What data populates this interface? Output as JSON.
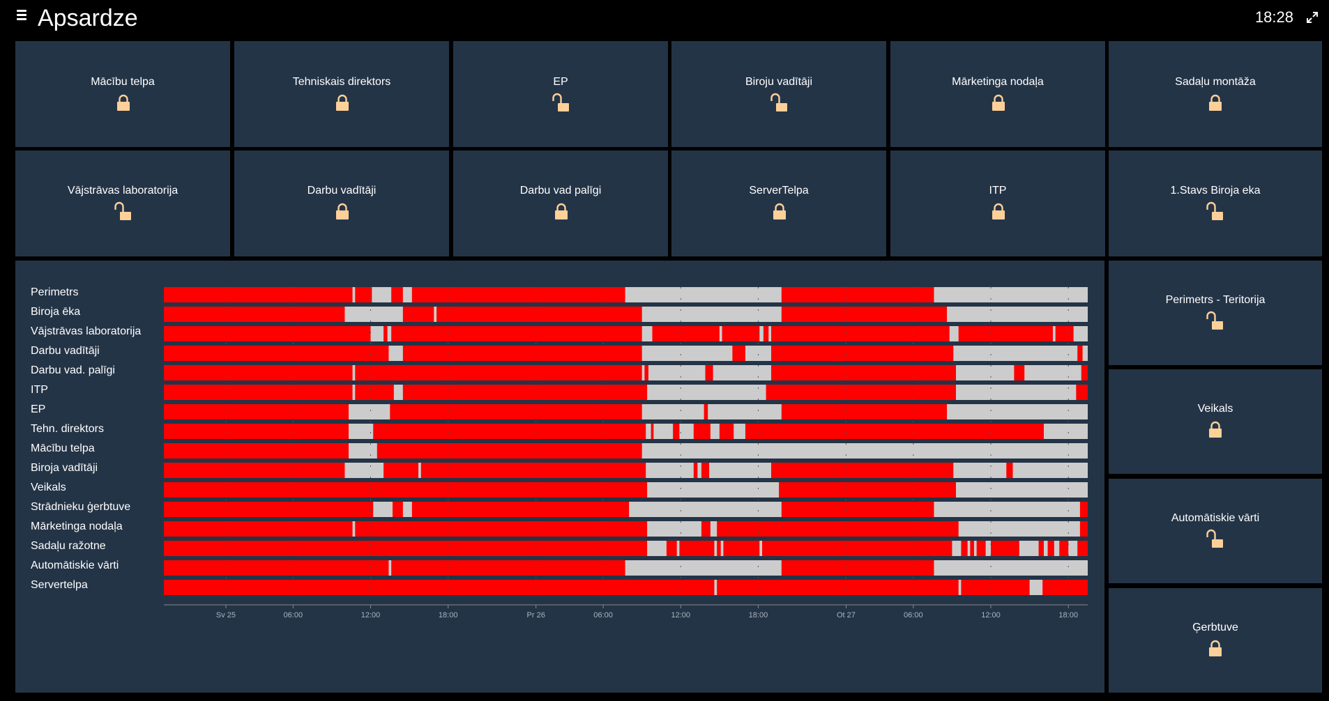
{
  "header": {
    "menu_icon": "hamburger-icon",
    "title": "Apsardze",
    "clock": "18:28",
    "expand_icon": "expand-icon"
  },
  "colors": {
    "tile_bg": "#243447",
    "locked": "#fdd099",
    "on": "#ff0000",
    "off": "#cccccc"
  },
  "doors": [
    {
      "label": "Mācību telpa",
      "state": "locked"
    },
    {
      "label": "Tehniskais direktors",
      "state": "locked"
    },
    {
      "label": "EP",
      "state": "unlocked"
    },
    {
      "label": "Biroju vadītāji",
      "state": "unlocked"
    },
    {
      "label": "Mārketinga nodaļa",
      "state": "locked"
    },
    {
      "label": "Sadaļu montāža",
      "state": "locked"
    },
    {
      "label": "Vājstrāvas laboratorija",
      "state": "unlocked"
    },
    {
      "label": "Darbu vadītāji",
      "state": "locked"
    },
    {
      "label": "Darbu vad palīgi",
      "state": "locked"
    },
    {
      "label": "ServerTelpa",
      "state": "locked"
    },
    {
      "label": "ITP",
      "state": "locked"
    },
    {
      "label": "1.Stavs Biroja eka",
      "state": "unlocked"
    }
  ],
  "side_doors": [
    {
      "label": "Perimetrs - Teritorija",
      "state": "unlocked"
    },
    {
      "label": "Veikals",
      "state": "locked"
    },
    {
      "label": "Automātiskie vārti",
      "state": "unlocked"
    },
    {
      "label": "Ģerbtuve",
      "state": "locked"
    }
  ],
  "chart_data": {
    "type": "timeline",
    "title": "",
    "x_unit": "hours since Fri 24 20:00",
    "x_range": [
      0,
      71.5
    ],
    "ticks": [
      {
        "label": "Sv 25",
        "hour": 4.8
      },
      {
        "label": "06:00",
        "hour": 10
      },
      {
        "label": "12:00",
        "hour": 16
      },
      {
        "label": "18:00",
        "hour": 22
      },
      {
        "label": "Pr 26",
        "hour": 28.8
      },
      {
        "label": "06:00",
        "hour": 34
      },
      {
        "label": "12:00",
        "hour": 40
      },
      {
        "label": "18:00",
        "hour": 46
      },
      {
        "label": "Ot 27",
        "hour": 52.8
      },
      {
        "label": "06:00",
        "hour": 58
      },
      {
        "label": "12:00",
        "hour": 64
      },
      {
        "label": "18:00",
        "hour": 70
      }
    ],
    "rows": [
      {
        "name": "Perimetrs",
        "off": [
          [
            14.6,
            14.8
          ],
          [
            16.1,
            17.6
          ],
          [
            18.5,
            19.2
          ],
          [
            35.7,
            47.8
          ],
          [
            59.6,
            71.5
          ]
        ]
      },
      {
        "name": "Biroja ēka",
        "off": [
          [
            14.0,
            18.5
          ],
          [
            20.9,
            21.1
          ],
          [
            37.0,
            47.8
          ],
          [
            60.6,
            71.5
          ]
        ]
      },
      {
        "name": "Vājstrāvas laboratorija",
        "off": [
          [
            16.0,
            17.0
          ],
          [
            17.3,
            17.6
          ],
          [
            37.0,
            37.8
          ],
          [
            43.0,
            43.2
          ],
          [
            46.1,
            46.4
          ],
          [
            46.8,
            47.0
          ],
          [
            60.8,
            61.5
          ],
          [
            68.8,
            69.0
          ],
          [
            70.4,
            71.5
          ]
        ]
      },
      {
        "name": "Darbu vadītāji",
        "off": [
          [
            17.4,
            18.5
          ],
          [
            37.0,
            44.0
          ],
          [
            45.0,
            47.0
          ],
          [
            61.1,
            70.7
          ],
          [
            71.1,
            71.5
          ]
        ]
      },
      {
        "name": "Darbu vad. palīgi",
        "off": [
          [
            14.6,
            14.8
          ],
          [
            37.0,
            37.2
          ],
          [
            37.5,
            41.9
          ],
          [
            42.5,
            47.0
          ],
          [
            61.3,
            65.8
          ],
          [
            66.6,
            71.0
          ]
        ]
      },
      {
        "name": "ITP",
        "off": [
          [
            14.6,
            14.8
          ],
          [
            17.8,
            18.5
          ],
          [
            37.4,
            46.6
          ],
          [
            61.3,
            70.6
          ]
        ]
      },
      {
        "name": "EP",
        "off": [
          [
            14.3,
            17.5
          ],
          [
            37.0,
            41.8
          ],
          [
            42.1,
            47.8
          ],
          [
            60.6,
            71.5
          ]
        ]
      },
      {
        "name": "Tehn. direktors",
        "off": [
          [
            14.3,
            16.2
          ],
          [
            37.3,
            37.7
          ],
          [
            37.9,
            39.4
          ],
          [
            39.9,
            41.0
          ],
          [
            42.3,
            43.0
          ],
          [
            44.1,
            45.0
          ],
          [
            68.1,
            71.5
          ]
        ]
      },
      {
        "name": "Mācību telpa",
        "off": [
          [
            14.3,
            16.5
          ],
          [
            37.0,
            71.5
          ]
        ]
      },
      {
        "name": "Biroja vadītāji",
        "off": [
          [
            14.0,
            17.0
          ],
          [
            19.7,
            19.9
          ],
          [
            37.3,
            41.0
          ],
          [
            41.3,
            41.6
          ],
          [
            42.2,
            47.0
          ],
          [
            61.1,
            65.2
          ],
          [
            65.7,
            71.5
          ]
        ]
      },
      {
        "name": "Veikals",
        "off": [
          [
            37.4,
            47.6
          ],
          [
            61.3,
            71.5
          ]
        ]
      },
      {
        "name": "Strādnieku ģerbtuve",
        "off": [
          [
            16.2,
            17.7
          ],
          [
            18.5,
            19.2
          ],
          [
            36.0,
            47.8
          ],
          [
            59.6,
            70.9
          ]
        ]
      },
      {
        "name": "Mārketinga nodaļa",
        "off": [
          [
            14.6,
            14.8
          ],
          [
            37.4,
            41.6
          ],
          [
            42.3,
            42.8
          ],
          [
            61.5,
            70.9
          ]
        ]
      },
      {
        "name": "Sadaļu ražotne",
        "off": [
          [
            37.4,
            38.9
          ],
          [
            39.7,
            39.9
          ],
          [
            42.6,
            42.8
          ],
          [
            43.1,
            43.3
          ],
          [
            46.1,
            46.3
          ],
          [
            61.0,
            61.7
          ],
          [
            62.2,
            62.4
          ],
          [
            62.7,
            62.9
          ],
          [
            63.6,
            64.0
          ],
          [
            66.2,
            67.7
          ],
          [
            68.1,
            68.4
          ],
          [
            68.9,
            69.3
          ],
          [
            70.0,
            70.7
          ]
        ]
      },
      {
        "name": "Automātiskie vārti",
        "off": [
          [
            17.4,
            17.6
          ],
          [
            35.7,
            47.8
          ],
          [
            59.6,
            71.5
          ]
        ]
      },
      {
        "name": "Servertelpa",
        "off": [
          [
            42.6,
            42.8
          ],
          [
            61.5,
            61.7
          ],
          [
            67.0,
            68.0
          ]
        ]
      }
    ]
  }
}
